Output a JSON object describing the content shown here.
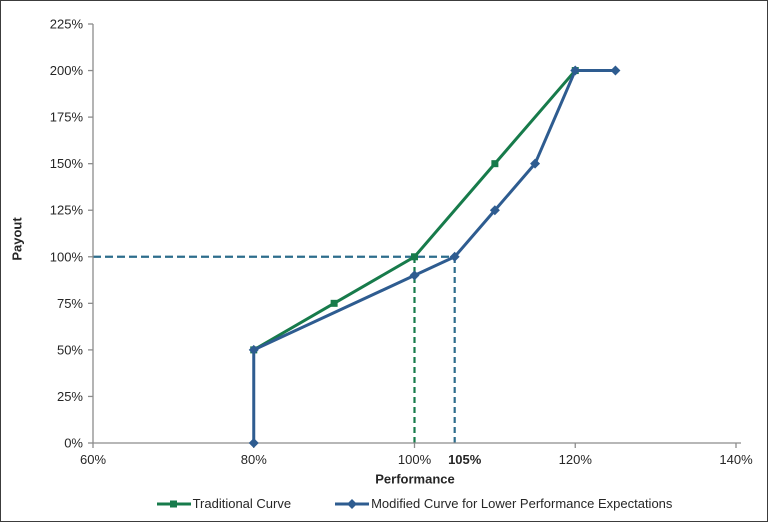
{
  "chart_data": {
    "type": "line",
    "xlabel": "Performance",
    "ylabel": "Payout",
    "xlim": [
      60,
      140
    ],
    "ylim": [
      0,
      225
    ],
    "grid": false,
    "legend_position": "bottom",
    "axis_color": "#8c8c8c",
    "text_color": "#262626",
    "x_ticks": [
      {
        "value": 60,
        "label": "60%"
      },
      {
        "value": 80,
        "label": "80%"
      },
      {
        "value": 100,
        "label": "100%"
      },
      {
        "value": 120,
        "label": "120%"
      },
      {
        "value": 140,
        "label": "140%"
      }
    ],
    "x_special_tick": {
      "value": 105,
      "label": "105%",
      "color": "#2d6d8c"
    },
    "y_ticks": [
      {
        "value": 0,
        "label": "0%"
      },
      {
        "value": 25,
        "label": "25%"
      },
      {
        "value": 50,
        "label": "50%"
      },
      {
        "value": 75,
        "label": "75%"
      },
      {
        "value": 100,
        "label": "100%"
      },
      {
        "value": 125,
        "label": "125%"
      },
      {
        "value": 150,
        "label": "150%"
      },
      {
        "value": 175,
        "label": "175%"
      },
      {
        "value": 200,
        "label": "200%"
      },
      {
        "value": 225,
        "label": "225%"
      }
    ],
    "series": [
      {
        "name": "Traditional Curve",
        "color": "#177b4b",
        "marker": "square",
        "points": [
          [
            80,
            50
          ],
          [
            90,
            75
          ],
          [
            100,
            100
          ],
          [
            110,
            150
          ],
          [
            120,
            200
          ]
        ]
      },
      {
        "name": "Modified Curve for Lower Performance Expectations",
        "color": "#2e5c90",
        "marker": "diamond",
        "points": [
          [
            80,
            0
          ],
          [
            80,
            50
          ],
          [
            100,
            90
          ],
          [
            105,
            100
          ],
          [
            110,
            125
          ],
          [
            115,
            150
          ],
          [
            120,
            200
          ],
          [
            125,
            200
          ]
        ]
      }
    ],
    "reference_lines": [
      {
        "orientation": "horizontal",
        "at": 100,
        "from": 60,
        "to": 105,
        "color": "#2d6d8c",
        "style": "dashed"
      },
      {
        "orientation": "vertical",
        "at": 100,
        "from": 0,
        "to": 100,
        "color": "#177b4b",
        "style": "dashed"
      },
      {
        "orientation": "vertical",
        "at": 105,
        "from": 0,
        "to": 100,
        "color": "#2d6d8c",
        "style": "dashed"
      }
    ]
  }
}
